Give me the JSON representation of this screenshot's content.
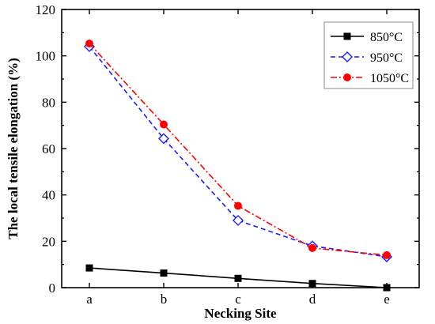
{
  "chart_data": {
    "type": "line",
    "title": "",
    "xlabel": "Necking Site",
    "ylabel": "The local tensile elongation (%)",
    "categories": [
      "a",
      "b",
      "c",
      "d",
      "e"
    ],
    "ylim": [
      0,
      120
    ],
    "yticks": [
      0,
      20,
      40,
      60,
      80,
      100,
      120
    ],
    "grid": false,
    "legend": "top-right",
    "series": [
      {
        "name": "850°C",
        "values": [
          8.5,
          6.3,
          4.0,
          1.8,
          0.0
        ],
        "color": "#000000",
        "line_style": "solid",
        "marker": "square-filled"
      },
      {
        "name": "950°C",
        "values": [
          104.0,
          64.3,
          29.0,
          18.0,
          13.3
        ],
        "color": "#1a1aff",
        "line_style": "dashed",
        "marker": "diamond-open"
      },
      {
        "name": "1050°C",
        "values": [
          105.3,
          70.4,
          35.3,
          17.1,
          14.0
        ],
        "color": "#ff0000",
        "line_style": "dash-dot",
        "marker": "circle-filled"
      }
    ]
  }
}
